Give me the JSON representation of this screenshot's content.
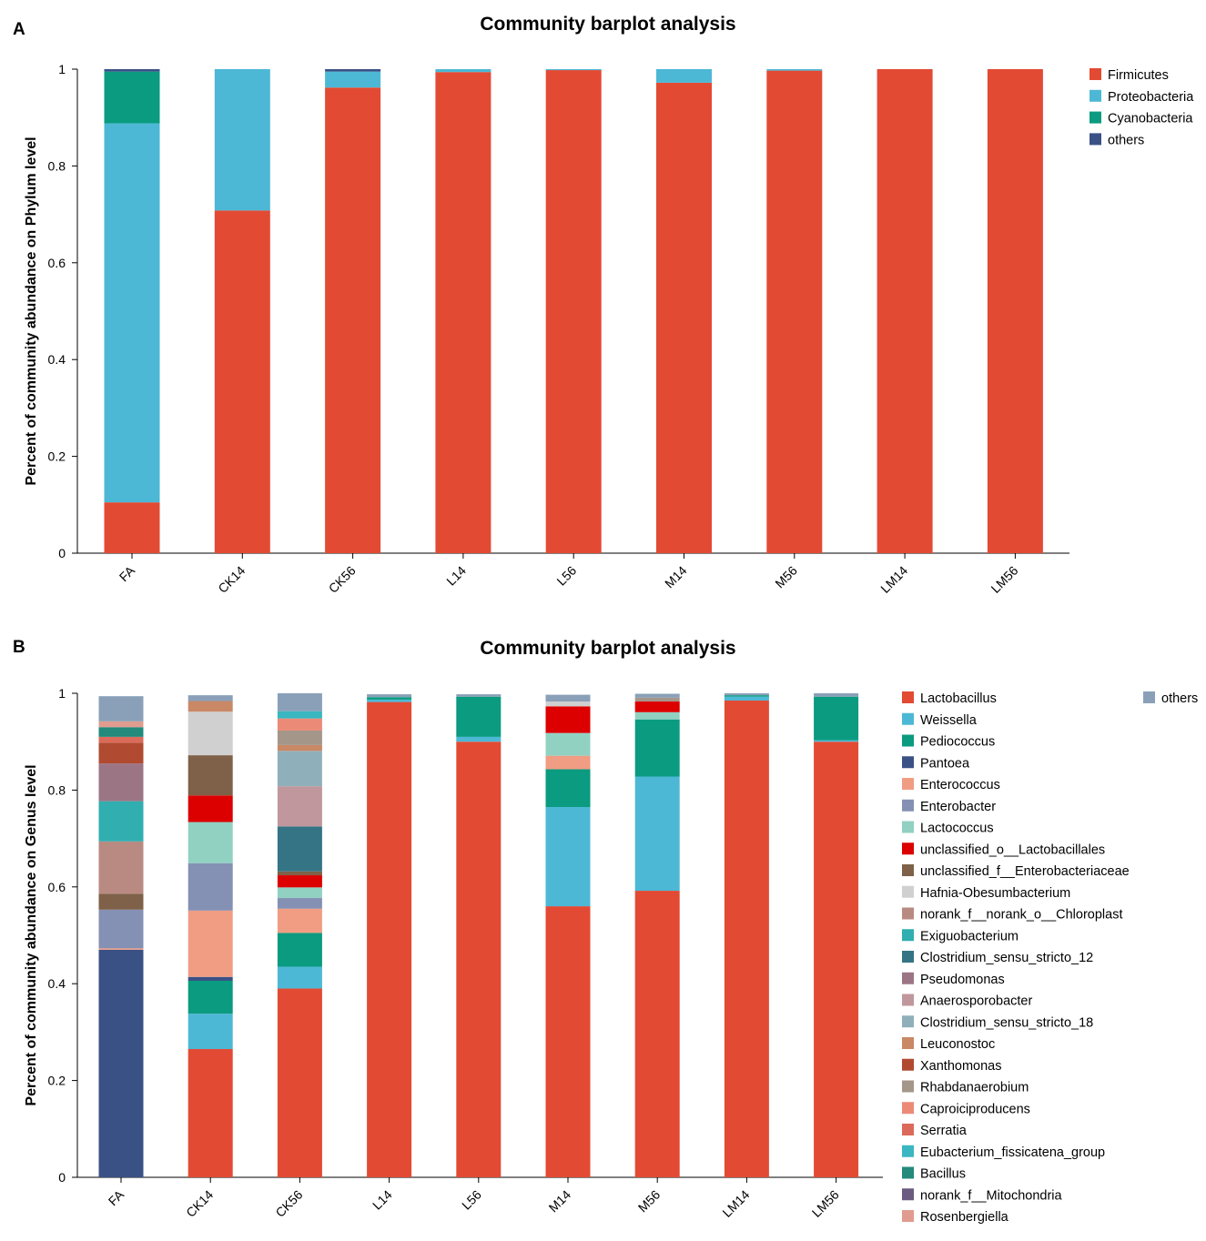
{
  "chart_data": [
    {
      "type": "bar",
      "stacked": true,
      "panel_label": "A",
      "title": "Community barplot analysis",
      "xlabel": "",
      "ylabel": "Percent of community abundance on Phylum level",
      "ylim": [
        0,
        1
      ],
      "yticks": [
        "0",
        "0.2",
        "0.4",
        "0.6",
        "0.8",
        "1"
      ],
      "categories": [
        "FA",
        "CK14",
        "CK56",
        "L14",
        "L56",
        "M14",
        "M56",
        "LM14",
        "LM56"
      ],
      "legend_position": "right",
      "series": [
        {
          "name": "Firmicutes",
          "color": "#e34a33",
          "values": [
            0.105,
            0.708,
            0.962,
            0.994,
            0.998,
            0.972,
            0.997,
            1.0,
            1.0
          ]
        },
        {
          "name": "Proteobacteria",
          "color": "#4db8d6",
          "values": [
            0.783,
            0.292,
            0.033,
            0.006,
            0.002,
            0.028,
            0.003,
            0.0,
            0.0
          ]
        },
        {
          "name": "Cyanobacteria",
          "color": "#0a9b80",
          "values": [
            0.107,
            0.0,
            0.0,
            0.0,
            0.0,
            0.0,
            0.0,
            0.0,
            0.0
          ]
        },
        {
          "name": "others",
          "color": "#3a5186",
          "values": [
            0.005,
            0.0,
            0.005,
            0.0,
            0.0,
            0.0,
            0.0,
            0.0,
            0.0
          ]
        }
      ]
    },
    {
      "type": "bar",
      "stacked": true,
      "panel_label": "B",
      "title": "Community barplot analysis",
      "xlabel": "",
      "ylabel": "Percent of community abundance on Genus level",
      "ylim": [
        0,
        1
      ],
      "yticks": [
        "0",
        "0.2",
        "0.4",
        "0.6",
        "0.8",
        "1"
      ],
      "categories": [
        "FA",
        "CK14",
        "CK56",
        "L14",
        "L56",
        "M14",
        "M56",
        "LM14",
        "LM56"
      ],
      "legend_position": "right",
      "series": [
        {
          "name": "Lactobacillus",
          "color": "#e34a33",
          "values": [
            0.0,
            0.265,
            0.39,
            0.982,
            0.9,
            0.56,
            0.592,
            0.985,
            0.9
          ]
        },
        {
          "name": "Weissella",
          "color": "#4db8d6",
          "values": [
            0.0,
            0.073,
            0.045,
            0.005,
            0.01,
            0.205,
            0.236,
            0.008,
            0.003
          ]
        },
        {
          "name": "Pediococcus",
          "color": "#0a9b80",
          "values": [
            0.0,
            0.068,
            0.07,
            0.005,
            0.083,
            0.078,
            0.118,
            0.003,
            0.09
          ]
        },
        {
          "name": "Pantoea",
          "color": "#3a5186",
          "values": [
            0.47,
            0.008,
            0.0,
            0.0,
            0.0,
            0.0,
            0.0,
            0.0,
            0.0
          ]
        },
        {
          "name": "Enterococcus",
          "color": "#f09d83",
          "values": [
            0.003,
            0.137,
            0.05,
            0.0,
            0.0,
            0.028,
            0.0,
            0.0,
            0.0
          ]
        },
        {
          "name": "Enterobacter",
          "color": "#8491b4",
          "values": [
            0.08,
            0.098,
            0.022,
            0.0,
            0.0,
            0.0,
            0.0,
            0.0,
            0.0
          ]
        },
        {
          "name": "Lactococcus",
          "color": "#91d1c2",
          "values": [
            0.0,
            0.085,
            0.022,
            0.0,
            0.0,
            0.047,
            0.015,
            0.0,
            0.0
          ]
        },
        {
          "name": "unclassified_o__Lactobacillales",
          "color": "#dc0000",
          "values": [
            0.0,
            0.055,
            0.025,
            0.0,
            0.0,
            0.055,
            0.022,
            0.0,
            0.0
          ]
        },
        {
          "name": "unclassified_f__Enterobacteriaceae",
          "color": "#7e6148",
          "values": [
            0.033,
            0.083,
            0.008,
            0.0,
            0.0,
            0.0,
            0.0,
            0.0,
            0.0
          ]
        },
        {
          "name": "Hafnia-Obesumbacterium",
          "color": "#d0d0d0",
          "values": [
            0.0,
            0.09,
            0.0,
            0.0,
            0.0,
            0.01,
            0.0,
            0.0,
            0.0
          ]
        },
        {
          "name": "norank_f__norank_o__Chloroplast",
          "color": "#b98a82",
          "values": [
            0.108,
            0.0,
            0.0,
            0.0,
            0.0,
            0.0,
            0.0,
            0.0,
            0.0
          ]
        },
        {
          "name": "Exiguobacterium",
          "color": "#30aeb0",
          "values": [
            0.083,
            0.0,
            0.0,
            0.0,
            0.0,
            0.0,
            0.0,
            0.0,
            0.0
          ]
        },
        {
          "name": "Clostridium_sensu_stricto_12",
          "color": "#347485",
          "values": [
            0.0,
            0.0,
            0.093,
            0.0,
            0.0,
            0.0,
            0.0,
            0.0,
            0.0
          ]
        },
        {
          "name": "Pseudomonas",
          "color": "#9c7585",
          "values": [
            0.078,
            0.0,
            0.0,
            0.0,
            0.0,
            0.0,
            0.0,
            0.0,
            0.0
          ]
        },
        {
          "name": "Anaerosporobacter",
          "color": "#c0979d",
          "values": [
            0.0,
            0.0,
            0.083,
            0.0,
            0.0,
            0.0,
            0.0,
            0.0,
            0.0
          ]
        },
        {
          "name": "Clostridium_sensu_stricto_18",
          "color": "#8fb0bb",
          "values": [
            0.0,
            0.0,
            0.073,
            0.0,
            0.0,
            0.0,
            0.0,
            0.0,
            0.0
          ]
        },
        {
          "name": "Leuconostoc",
          "color": "#c98866",
          "values": [
            0.0,
            0.022,
            0.012,
            0.0,
            0.0,
            0.0,
            0.0,
            0.0,
            0.0
          ]
        },
        {
          "name": "Xanthomonas",
          "color": "#b04a30",
          "values": [
            0.043,
            0.0,
            0.0,
            0.0,
            0.0,
            0.0,
            0.0,
            0.0,
            0.0
          ]
        },
        {
          "name": "Rhabdanaerobium",
          "color": "#a5968a",
          "values": [
            0.0,
            0.0,
            0.03,
            0.0,
            0.0,
            0.0,
            0.008,
            0.0,
            0.0
          ]
        },
        {
          "name": "Caproiciproducens",
          "color": "#ec8a78",
          "values": [
            0.0,
            0.0,
            0.025,
            0.0,
            0.0,
            0.0,
            0.0,
            0.0,
            0.0
          ]
        },
        {
          "name": "Serratia",
          "color": "#dc6a5a",
          "values": [
            0.012,
            0.0,
            0.0,
            0.0,
            0.0,
            0.0,
            0.0,
            0.0,
            0.0
          ]
        },
        {
          "name": "Eubacterium_fissicatena_group",
          "color": "#3ab7c0",
          "values": [
            0.0,
            0.0,
            0.015,
            0.0,
            0.0,
            0.0,
            0.0,
            0.0,
            0.0
          ]
        },
        {
          "name": "Bacillus",
          "color": "#238a7c",
          "values": [
            0.02,
            0.0,
            0.0,
            0.0,
            0.0,
            0.0,
            0.0,
            0.0,
            0.0
          ]
        },
        {
          "name": "norank_f__Mitochondria",
          "color": "#6c5a80",
          "values": [
            0.0,
            0.0,
            0.0,
            0.0,
            0.0,
            0.0,
            0.0,
            0.0,
            0.0
          ]
        },
        {
          "name": "Rosenbergiella",
          "color": "#e09c8f",
          "values": [
            0.012,
            0.0,
            0.0,
            0.0,
            0.0,
            0.0,
            0.0,
            0.0,
            0.0
          ]
        },
        {
          "name": "others",
          "color": "#8aa0b8",
          "values": [
            0.052,
            0.012,
            0.037,
            0.006,
            0.005,
            0.014,
            0.008,
            0.004,
            0.007
          ]
        }
      ]
    }
  ]
}
